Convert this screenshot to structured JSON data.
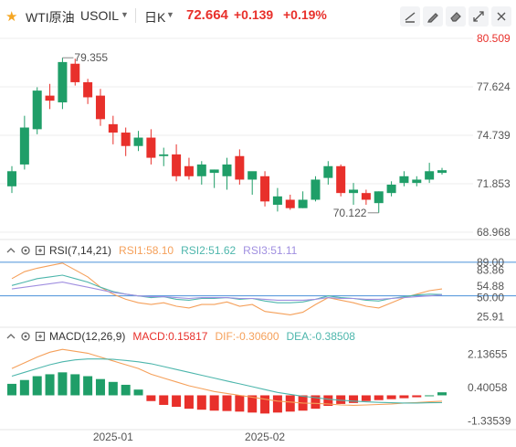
{
  "header": {
    "symbol_name": "WTI原油",
    "symbol_code": "USOIL",
    "period": "日K",
    "last_price": "72.664",
    "change": "+0.139",
    "change_pct": "+0.19%",
    "icons": [
      "star-icon",
      "dropdown-caret-icon",
      "draw-line-icon",
      "pencil-icon",
      "eraser-icon",
      "expand-icon",
      "close-icon"
    ]
  },
  "colors": {
    "up": "#e8302b",
    "down": "#1f9e68",
    "accent_red": "#e8302b",
    "rsi1": "#f5a05a",
    "rsi2": "#4db6ac",
    "rsi3": "#a08fe0",
    "macd_dif": "#f5a05a",
    "macd_dea": "#4db6ac",
    "level_line": "#4a90d9",
    "axis_text": "#555555",
    "grid": "#eeeeee"
  },
  "chart_data": [
    {
      "type": "candlestick",
      "title": "",
      "y_axis_ticks": [
        "80.509",
        "77.624",
        "74.739",
        "71.853",
        "68.968"
      ],
      "ylim": [
        68.968,
        80.509
      ],
      "x_tick_labels": [
        "2025-01",
        "2025-02"
      ],
      "annotations": [
        {
          "label": "79.355",
          "kind": "max_high"
        },
        {
          "label": "70.122",
          "kind": "min_low"
        }
      ],
      "candles": [
        {
          "o": 71.7,
          "h": 72.9,
          "l": 71.3,
          "c": 72.6
        },
        {
          "o": 73.0,
          "h": 75.9,
          "l": 72.7,
          "c": 75.2
        },
        {
          "o": 75.1,
          "h": 77.6,
          "l": 74.8,
          "c": 77.4
        },
        {
          "o": 77.1,
          "h": 77.8,
          "l": 76.3,
          "c": 76.8
        },
        {
          "o": 76.7,
          "h": 79.355,
          "l": 76.3,
          "c": 79.1
        },
        {
          "o": 79.0,
          "h": 79.3,
          "l": 77.7,
          "c": 77.9
        },
        {
          "o": 77.9,
          "h": 78.1,
          "l": 76.6,
          "c": 77.0
        },
        {
          "o": 77.1,
          "h": 77.5,
          "l": 75.3,
          "c": 75.7
        },
        {
          "o": 75.4,
          "h": 75.9,
          "l": 74.2,
          "c": 74.9
        },
        {
          "o": 74.9,
          "h": 75.2,
          "l": 73.5,
          "c": 74.1
        },
        {
          "o": 74.1,
          "h": 75.0,
          "l": 73.8,
          "c": 74.6
        },
        {
          "o": 74.6,
          "h": 75.1,
          "l": 73.0,
          "c": 73.4
        },
        {
          "o": 73.5,
          "h": 74.0,
          "l": 72.9,
          "c": 73.6
        },
        {
          "o": 73.6,
          "h": 74.2,
          "l": 72.0,
          "c": 72.3
        },
        {
          "o": 72.9,
          "h": 73.4,
          "l": 72.1,
          "c": 72.3
        },
        {
          "o": 72.3,
          "h": 73.2,
          "l": 71.8,
          "c": 73.0
        },
        {
          "o": 72.5,
          "h": 72.7,
          "l": 71.6,
          "c": 72.7
        },
        {
          "o": 72.3,
          "h": 73.4,
          "l": 71.5,
          "c": 73.0
        },
        {
          "o": 73.5,
          "h": 73.9,
          "l": 71.8,
          "c": 72.1
        },
        {
          "o": 72.1,
          "h": 72.5,
          "l": 71.2,
          "c": 72.6
        },
        {
          "o": 72.3,
          "h": 72.6,
          "l": 70.5,
          "c": 70.8
        },
        {
          "o": 70.6,
          "h": 71.6,
          "l": 70.2,
          "c": 71.1
        },
        {
          "o": 70.9,
          "h": 71.2,
          "l": 70.3,
          "c": 70.4
        },
        {
          "o": 70.4,
          "h": 71.4,
          "l": 70.4,
          "c": 70.9
        },
        {
          "o": 70.9,
          "h": 72.3,
          "l": 70.8,
          "c": 72.1
        },
        {
          "o": 72.2,
          "h": 73.2,
          "l": 71.8,
          "c": 72.9
        },
        {
          "o": 72.9,
          "h": 73.0,
          "l": 71.1,
          "c": 71.3
        },
        {
          "o": 71.3,
          "h": 71.9,
          "l": 70.6,
          "c": 71.5
        },
        {
          "o": 71.3,
          "h": 71.5,
          "l": 70.6,
          "c": 70.9
        },
        {
          "o": 70.7,
          "h": 71.4,
          "l": 70.122,
          "c": 71.4
        },
        {
          "o": 71.3,
          "h": 72.0,
          "l": 71.1,
          "c": 71.8
        },
        {
          "o": 71.9,
          "h": 72.6,
          "l": 71.7,
          "c": 72.3
        },
        {
          "o": 71.9,
          "h": 72.3,
          "l": 71.7,
          "c": 72.1
        },
        {
          "o": 72.1,
          "h": 73.1,
          "l": 71.9,
          "c": 72.6
        },
        {
          "o": 72.5,
          "h": 72.8,
          "l": 72.4,
          "c": 72.66
        }
      ]
    },
    {
      "type": "line",
      "title": "RSI(7,14,21)",
      "legend": [
        {
          "name": "RSI1",
          "value": "58.10"
        },
        {
          "name": "RSI2",
          "value": "51.62"
        },
        {
          "name": "RSI3",
          "value": "51.11"
        }
      ],
      "y_axis_ticks": [
        "89.00",
        "83.86",
        "54.88",
        "50.00",
        "25.91"
      ],
      "ylim": [
        20,
        92
      ],
      "series": [
        {
          "name": "RSI1",
          "values": [
            70,
            78,
            82,
            85,
            88,
            80,
            72,
            60,
            52,
            46,
            42,
            40,
            42,
            38,
            36,
            40,
            40,
            43,
            38,
            40,
            32,
            30,
            28,
            31,
            40,
            48,
            45,
            42,
            38,
            36,
            42,
            48,
            52,
            56,
            58
          ]
        },
        {
          "name": "RSI2",
          "values": [
            62,
            66,
            70,
            72,
            74,
            70,
            66,
            60,
            55,
            52,
            50,
            48,
            49,
            46,
            45,
            47,
            47,
            48,
            46,
            47,
            44,
            42,
            42,
            43,
            46,
            50,
            48,
            47,
            45,
            44,
            47,
            49,
            51,
            52,
            51.6
          ]
        },
        {
          "name": "RSI3",
          "values": [
            58,
            60,
            62,
            64,
            66,
            63,
            60,
            57,
            54,
            52,
            50,
            49,
            49,
            48,
            47,
            48,
            48,
            48,
            47,
            47,
            46,
            45,
            45,
            45,
            46,
            48,
            47,
            47,
            46,
            46,
            47,
            48,
            49,
            50,
            51.1
          ]
        }
      ]
    },
    {
      "type": "bar+line",
      "title": "MACD(12,26,9)",
      "legend": [
        {
          "name": "MACD",
          "value": "0.15817"
        },
        {
          "name": "DIF",
          "value": "-0.30600"
        },
        {
          "name": "DEA",
          "value": "-0.38508"
        }
      ],
      "y_axis_ticks": [
        "2.13655",
        "0.40058",
        "-1.33539"
      ],
      "ylim": [
        -1.6,
        2.6
      ],
      "series": [
        {
          "name": "MACD",
          "values": [
            0.6,
            0.8,
            1.0,
            1.1,
            1.2,
            1.1,
            1.0,
            0.85,
            0.7,
            0.55,
            0.3,
            -0.3,
            -0.5,
            -0.6,
            -0.7,
            -0.75,
            -0.8,
            -0.82,
            -0.85,
            -0.9,
            -0.95,
            -0.9,
            -0.85,
            -0.8,
            -0.7,
            -0.55,
            -0.45,
            -0.4,
            -0.3,
            -0.25,
            -0.2,
            -0.15,
            -0.1,
            0.0,
            0.158
          ]
        },
        {
          "name": "DIF",
          "values": [
            1.4,
            1.7,
            2.0,
            2.25,
            2.4,
            2.3,
            2.2,
            2.0,
            1.8,
            1.6,
            1.4,
            1.1,
            0.9,
            0.7,
            0.5,
            0.35,
            0.2,
            0.1,
            0.0,
            -0.1,
            -0.2,
            -0.3,
            -0.35,
            -0.4,
            -0.42,
            -0.45,
            -0.5,
            -0.52,
            -0.5,
            -0.48,
            -0.45,
            -0.4,
            -0.38,
            -0.34,
            -0.306
          ]
        },
        {
          "name": "DEA",
          "values": [
            1.0,
            1.2,
            1.4,
            1.6,
            1.75,
            1.85,
            1.9,
            1.9,
            1.88,
            1.82,
            1.75,
            1.65,
            1.5,
            1.35,
            1.2,
            1.05,
            0.9,
            0.75,
            0.6,
            0.45,
            0.3,
            0.15,
            0.05,
            -0.05,
            -0.12,
            -0.2,
            -0.26,
            -0.3,
            -0.34,
            -0.37,
            -0.39,
            -0.4,
            -0.4,
            -0.39,
            -0.385
          ]
        }
      ]
    }
  ]
}
